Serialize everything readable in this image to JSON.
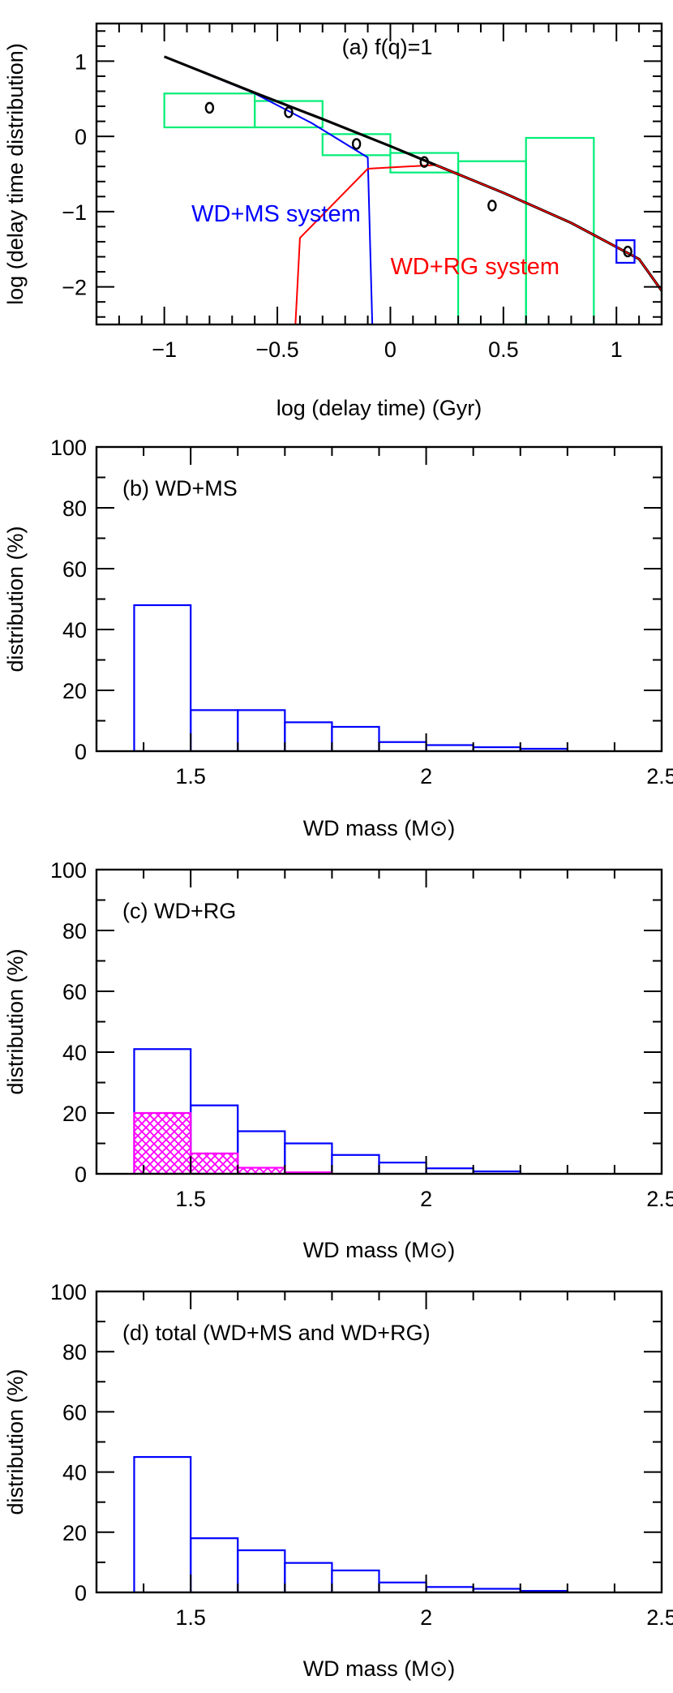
{
  "colors": {
    "sim_blue": "#0000ff",
    "sim_red": "#ff0000",
    "total_black": "#000000",
    "obs_green": "#00ee77",
    "hatch_magenta": "#ff00ff"
  },
  "chart_data": [
    {
      "type": "line",
      "panel_label": "(a) f(q)=1",
      "xlabel": "log (delay time) (Gyr)",
      "ylabel": "log (delay time distribution)",
      "xlim": [
        -1.3,
        1.2
      ],
      "ylim": [
        -2.5,
        1.5
      ],
      "xticks": [
        -1,
        -0.5,
        0,
        0.5,
        1
      ],
      "xtick_labels": [
        "−1",
        "−0.5",
        "0",
        "0.5",
        "1"
      ],
      "yticks": [
        1,
        0,
        -1,
        -2
      ],
      "ytick_labels": [
        "1",
        "0",
        "−1",
        "−2"
      ],
      "annotations": [
        {
          "text": "WD+MS system",
          "color": "#0000ff"
        },
        {
          "text": "WD+RG system",
          "color": "#ff0000"
        }
      ],
      "series": [
        {
          "color": "#0000ff",
          "x": [
            -1,
            -0.6,
            -0.35,
            -0.1,
            -0.08
          ],
          "y": [
            1.06,
            0.57,
            0.18,
            -0.28,
            -2.5
          ]
        },
        {
          "color": "#ff0000",
          "x": [
            -0.42,
            -0.4,
            -0.1,
            0.2,
            0.5,
            0.8,
            1.1,
            1.2
          ],
          "y": [
            -2.5,
            -1.35,
            -0.43,
            -0.38,
            -0.75,
            -1.15,
            -1.63,
            -2.05
          ]
        },
        {
          "color": "#000000",
          "x": [
            -1,
            -0.6,
            -0.3,
            0,
            0.2,
            0.5,
            0.8,
            1.1,
            1.2
          ],
          "y": [
            1.06,
            0.58,
            0.23,
            -0.13,
            -0.38,
            -0.75,
            -1.15,
            -1.63,
            -2.05
          ]
        }
      ],
      "observation_boxes": [
        {
          "x": [
            -1,
            -0.6
          ],
          "y": [
            0.12,
            0.57
          ]
        },
        {
          "x": [
            -0.6,
            -0.3
          ],
          "y": [
            0.12,
            0.47
          ]
        },
        {
          "x": [
            -0.3,
            0
          ],
          "y": [
            -0.25,
            0.03
          ]
        },
        {
          "x": [
            0,
            0.3
          ],
          "y": [
            -0.48,
            -0.22
          ]
        },
        {
          "x": [
            0.3,
            0.6
          ],
          "y": [
            -2.5,
            -0.33
          ]
        },
        {
          "x": [
            0.6,
            0.9
          ],
          "y": [
            -2.5,
            -0.02
          ]
        }
      ],
      "points": {
        "x": [
          -0.8,
          -0.45,
          -0.15,
          0.15,
          0.45,
          1.05
        ],
        "y": [
          0.38,
          0.32,
          -0.1,
          -0.34,
          -0.92,
          -1.53
        ]
      },
      "highlight_box": {
        "x": [
          1.0,
          1.08
        ],
        "y": [
          -1.68,
          -1.38
        ],
        "color": "#0000ff"
      }
    },
    {
      "type": "bar",
      "panel_label": "(b) WD+MS",
      "xlabel": "WD mass (M⊙)",
      "ylabel": "distribution (%)",
      "xlim": [
        1.3,
        2.5
      ],
      "ylim": [
        0,
        100
      ],
      "xticks": [
        1.5,
        2,
        2.5
      ],
      "xtick_labels": [
        "1.5",
        "2",
        "2.5"
      ],
      "yticks": [
        0,
        20,
        40,
        60,
        80,
        100
      ],
      "ytick_labels": [
        "0",
        "20",
        "40",
        "60",
        "80",
        "100"
      ],
      "bin_edges": [
        1.38,
        1.5,
        1.6,
        1.7,
        1.8,
        1.9,
        2.0,
        2.1,
        2.2,
        2.3
      ],
      "series": [
        {
          "color": "#0000ff",
          "values": [
            48,
            13.5,
            13.5,
            9.5,
            8,
            3,
            2,
            1.3,
            0.8
          ]
        }
      ]
    },
    {
      "type": "bar",
      "panel_label": "(c) WD+RG",
      "xlabel": "WD mass (M⊙)",
      "ylabel": "distribution (%)",
      "xlim": [
        1.3,
        2.5
      ],
      "ylim": [
        0,
        100
      ],
      "xticks": [
        1.5,
        2,
        2.5
      ],
      "xtick_labels": [
        "1.5",
        "2",
        "2.5"
      ],
      "yticks": [
        0,
        20,
        40,
        60,
        80,
        100
      ],
      "ytick_labels": [
        "0",
        "20",
        "40",
        "60",
        "80",
        "100"
      ],
      "bin_edges": [
        1.38,
        1.5,
        1.6,
        1.7,
        1.8,
        1.9,
        2.0,
        2.1,
        2.2
      ],
      "series": [
        {
          "color": "#0000ff",
          "values": [
            41,
            22.5,
            14,
            10,
            6.2,
            3.7,
            1.8,
            0.8
          ]
        },
        {
          "color": "#ff00ff",
          "hatched": true,
          "values": [
            20,
            6.7,
            2,
            0.5,
            0,
            0,
            0,
            0
          ]
        }
      ]
    },
    {
      "type": "bar",
      "panel_label": "(d) total (WD+MS and WD+RG)",
      "xlabel": "WD mass (M⊙)",
      "ylabel": "distribution (%)",
      "xlim": [
        1.3,
        2.5
      ],
      "ylim": [
        0,
        100
      ],
      "xticks": [
        1.5,
        2,
        2.5
      ],
      "xtick_labels": [
        "1.5",
        "2",
        "2.5"
      ],
      "yticks": [
        0,
        20,
        40,
        60,
        80,
        100
      ],
      "ytick_labels": [
        "0",
        "20",
        "40",
        "60",
        "80",
        "100"
      ],
      "bin_edges": [
        1.38,
        1.5,
        1.6,
        1.7,
        1.8,
        1.9,
        2.0,
        2.1,
        2.2,
        2.3
      ],
      "series": [
        {
          "color": "#0000ff",
          "values": [
            45,
            18,
            14,
            9.8,
            7.3,
            3.3,
            1.8,
            1.2,
            0.5
          ]
        }
      ]
    }
  ]
}
